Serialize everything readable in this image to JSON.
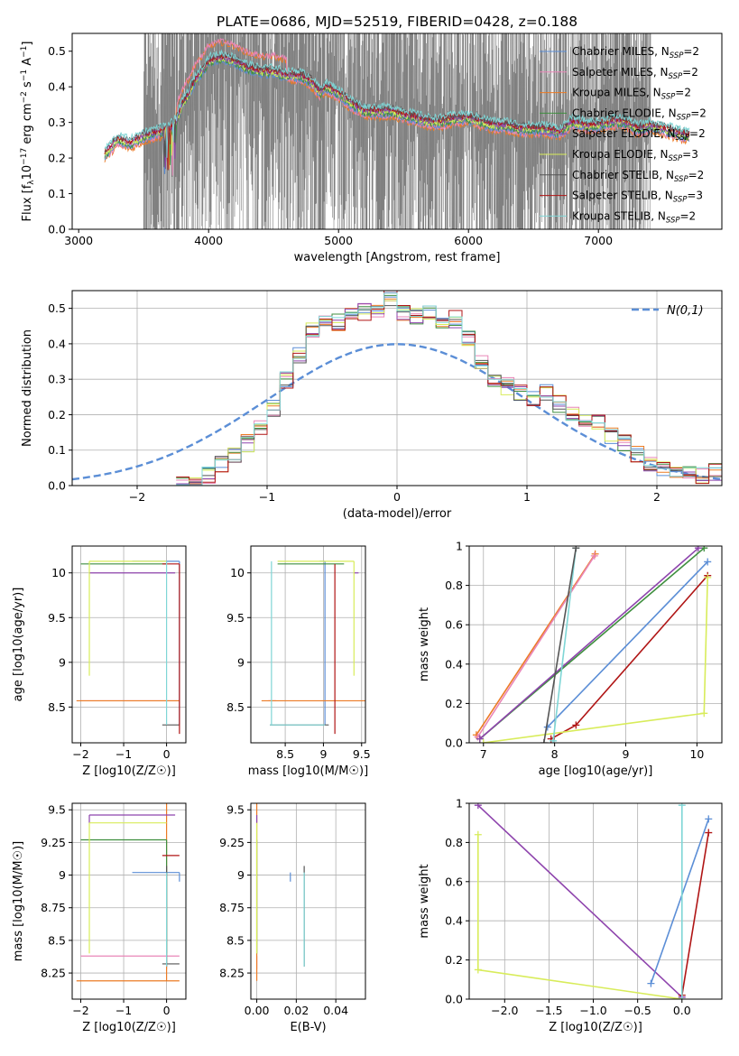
{
  "page_title": "PLATE=0686, MJD=52519, FIBERID=0428, z=0.188",
  "colors": {
    "chabrier_miles": "#5b8ed6",
    "salpeter_miles": "#e986b8",
    "kroupa_miles": "#ec7b25",
    "chabrier_elodie": "#3f8f3f",
    "salpeter_elodie": "#8e44ad",
    "kroupa_elodie": "#d8ec5a",
    "chabrier_stelib": "#555555",
    "salpeter_stelib": "#b01515",
    "kroupa_stelib": "#7fd6d6",
    "data": "#808080",
    "gauss": "#5b8ed6",
    "grid": "#b0b0b0"
  },
  "chart_data": [
    {
      "id": "spectrum",
      "type": "line",
      "title": "PLATE=0686, MJD=52519, FIBERID=0428, z=0.188",
      "xlabel": "wavelength [Angstrom, rest frame]",
      "ylabel": "Flux [f_λ 10^-17 erg cm^-2 s^-1 A^-1]",
      "xlim": [
        2950,
        7950
      ],
      "ylim": [
        0,
        0.55
      ],
      "xticks": [
        3000,
        4000,
        5000,
        6000,
        7000
      ],
      "yticks": [
        0.0,
        0.1,
        0.2,
        0.3,
        0.4,
        0.5
      ],
      "grid": false,
      "legend_position": "top-right",
      "legend": [
        {
          "name": "Chabrier MILES, N",
          "sub": "SSP",
          "tail": "=2",
          "color_key": "chabrier_miles"
        },
        {
          "name": "Salpeter MILES, N",
          "sub": "SSP",
          "tail": "=2",
          "color_key": "salpeter_miles"
        },
        {
          "name": "Kroupa MILES, N",
          "sub": "SSP",
          "tail": "=2",
          "color_key": "kroupa_miles"
        },
        {
          "name": "Chabrier ELODIE, N",
          "sub": "SSP",
          "tail": "=2",
          "color_key": "chabrier_elodie"
        },
        {
          "name": "Salpeter ELODIE, N",
          "sub": "SSP",
          "tail": "=2",
          "color_key": "salpeter_elodie"
        },
        {
          "name": "Kroupa ELODIE, N",
          "sub": "SSP",
          "tail": "=3",
          "color_key": "kroupa_elodie"
        },
        {
          "name": "Chabrier STELIB, N",
          "sub": "SSP",
          "tail": "=2",
          "color_key": "chabrier_stelib"
        },
        {
          "name": "Salpeter STELIB, N",
          "sub": "SSP",
          "tail": "=3",
          "color_key": "salpeter_stelib"
        },
        {
          "name": "Kroupa STELIB, N",
          "sub": "SSP",
          "tail": "=2",
          "color_key": "kroupa_stelib"
        }
      ],
      "model_continuum": {
        "x": [
          3200,
          3300,
          3400,
          3500,
          3600,
          3700,
          3750,
          3800,
          3850,
          3900,
          3950,
          4000,
          4100,
          4200,
          4300,
          4400,
          4500,
          4600,
          4700,
          4800,
          4860,
          4900,
          5000,
          5100,
          5200,
          5300,
          5400,
          5500,
          5600,
          5700,
          5800,
          5900,
          6000,
          6100,
          6200,
          6300,
          6400,
          6500,
          6600,
          6700,
          6800,
          6900,
          7000,
          7100,
          7200,
          7300,
          7400,
          7500,
          7600,
          7700
        ],
        "y": [
          0.21,
          0.25,
          0.24,
          0.26,
          0.27,
          0.28,
          0.3,
          0.35,
          0.38,
          0.42,
          0.44,
          0.47,
          0.48,
          0.47,
          0.45,
          0.44,
          0.44,
          0.43,
          0.43,
          0.41,
          0.38,
          0.4,
          0.38,
          0.35,
          0.33,
          0.33,
          0.33,
          0.32,
          0.31,
          0.3,
          0.3,
          0.31,
          0.31,
          0.3,
          0.29,
          0.29,
          0.28,
          0.28,
          0.28,
          0.27,
          0.3,
          0.29,
          0.29,
          0.3,
          0.3,
          0.28,
          0.29,
          0.28,
          0.27,
          0.26
        ]
      },
      "noisy_region": [
        3500,
        7400
      ]
    },
    {
      "id": "residuals",
      "type": "bar",
      "xlabel": "(data-model)/error",
      "ylabel": "Normed distribution",
      "xlim": [
        -2.5,
        2.5
      ],
      "ylim": [
        0,
        0.55
      ],
      "xticks": [
        -2,
        -1,
        0,
        1,
        2
      ],
      "yticks": [
        0.0,
        0.1,
        0.2,
        0.3,
        0.4,
        0.5
      ],
      "grid": true,
      "legend_position": "top-right",
      "legend_label": "N(0,1)",
      "bin_width": 0.1,
      "x": [
        -1.65,
        -1.55,
        -1.45,
        -1.35,
        -1.25,
        -1.15,
        -1.05,
        -0.95,
        -0.85,
        -0.75,
        -0.65,
        -0.55,
        -0.45,
        -0.35,
        -0.25,
        -0.15,
        -0.05,
        0.05,
        0.15,
        0.25,
        0.35,
        0.45,
        0.55,
        0.65,
        0.75,
        0.85,
        0.95,
        1.05,
        1.15,
        1.25,
        1.35,
        1.45,
        1.55,
        1.65,
        1.75,
        1.85,
        1.95,
        2.05,
        2.15,
        2.25,
        2.35,
        2.45
      ],
      "values": [
        0.0,
        0.01,
        0.03,
        0.06,
        0.09,
        0.12,
        0.16,
        0.22,
        0.3,
        0.37,
        0.44,
        0.47,
        0.46,
        0.48,
        0.49,
        0.5,
        0.53,
        0.49,
        0.48,
        0.49,
        0.45,
        0.47,
        0.42,
        0.35,
        0.3,
        0.28,
        0.26,
        0.25,
        0.26,
        0.23,
        0.2,
        0.19,
        0.18,
        0.14,
        0.12,
        0.09,
        0.06,
        0.05,
        0.04,
        0.03,
        0.03,
        0.04
      ]
    },
    {
      "id": "age-vs-Z",
      "type": "scatter",
      "xlabel": "Z [log10(Z/Z☉)]",
      "ylabel": "age [log10(age/yr)]",
      "xlim": [
        -2.2,
        0.45
      ],
      "ylim": [
        8.1,
        10.3
      ],
      "xticks": [
        -2,
        -1,
        0
      ],
      "yticks": [
        8.5,
        9.0,
        9.5,
        10.0
      ],
      "grid": true
    },
    {
      "id": "age-vs-mass",
      "type": "scatter",
      "xlabel": "mass [log10(M/M☉)]",
      "ylabel": "",
      "xlim": [
        8.05,
        9.55
      ],
      "ylim": [
        8.1,
        10.3
      ],
      "xticks": [
        8.5,
        9.0,
        9.5
      ],
      "yticks": [
        8.5,
        9.0,
        9.5,
        10.0
      ],
      "grid": true
    },
    {
      "id": "weight-vs-age",
      "type": "line",
      "xlabel": "age [log10(age/yr)]",
      "ylabel": "mass weight",
      "xlim": [
        6.8,
        10.35
      ],
      "ylim": [
        0,
        1
      ],
      "xticks": [
        7,
        8,
        9,
        10
      ],
      "yticks": [
        0.0,
        0.2,
        0.4,
        0.6,
        0.8,
        1.0
      ],
      "grid": true,
      "series": [
        {
          "color_key": "kroupa_miles",
          "x": [
            6.9,
            8.57
          ],
          "y": [
            0.04,
            0.96
          ]
        },
        {
          "color_key": "salpeter_miles",
          "x": [
            6.92,
            8.56
          ],
          "y": [
            0.03,
            0.95
          ]
        },
        {
          "color_key": "chabrier_elodie",
          "x": [
            6.95,
            10.1
          ],
          "y": [
            0.02,
            0.99
          ]
        },
        {
          "color_key": "salpeter_elodie",
          "x": [
            6.95,
            10.02
          ],
          "y": [
            0.02,
            0.99
          ]
        },
        {
          "color_key": "chabrier_miles",
          "x": [
            7.9,
            10.15
          ],
          "y": [
            0.08,
            0.92
          ]
        },
        {
          "color_key": "salpeter_stelib",
          "x": [
            7.95,
            8.3,
            10.15
          ],
          "y": [
            0.02,
            0.09,
            0.85
          ]
        },
        {
          "color_key": "kroupa_elodie",
          "x": [
            7.0,
            10.1,
            10.15
          ],
          "y": [
            0.0,
            0.15,
            0.84
          ]
        },
        {
          "color_key": "kroupa_stelib",
          "x": [
            7.98,
            8.3
          ],
          "y": [
            0.01,
            0.99
          ]
        },
        {
          "color_key": "chabrier_stelib",
          "x": [
            7.85,
            8.3
          ],
          "y": [
            0.0,
            0.99
          ]
        }
      ]
    },
    {
      "id": "mass-vs-Z",
      "type": "scatter",
      "xlabel": "Z [log10(Z/Z☉)]",
      "ylabel": "mass [log10(M/M☉)]",
      "xlim": [
        -2.2,
        0.45
      ],
      "ylim": [
        8.05,
        9.55
      ],
      "xticks": [
        -2,
        -1,
        0
      ],
      "yticks": [
        8.25,
        8.5,
        8.75,
        9.0,
        9.25,
        9.5
      ],
      "grid": true
    },
    {
      "id": "mass-vs-EBV",
      "type": "scatter",
      "xlabel": "E(B-V)",
      "ylabel": "",
      "xlim": [
        -0.003,
        0.055
      ],
      "ylim": [
        8.05,
        9.55
      ],
      "xticks": [
        0.0,
        0.02,
        0.04
      ],
      "yticks": [
        8.25,
        8.5,
        8.75,
        9.0,
        9.25,
        9.5
      ],
      "grid": true
    },
    {
      "id": "weight-vs-Z",
      "type": "line",
      "xlabel": "Z [log10(Z/Z☉)]",
      "ylabel": "mass weight",
      "xlim": [
        -2.4,
        0.45
      ],
      "ylim": [
        0,
        1
      ],
      "xticks": [
        -2.0,
        -1.5,
        -1.0,
        -0.5,
        0.0
      ],
      "yticks": [
        0.0,
        0.2,
        0.4,
        0.6,
        0.8,
        1.0
      ],
      "grid": true,
      "series": [
        {
          "color_key": "salpeter_elodie",
          "x": [
            -2.3,
            0.0
          ],
          "y": [
            0.99,
            0.01
          ]
        },
        {
          "color_key": "kroupa_elodie",
          "x": [
            -2.3,
            -2.3,
            0.0
          ],
          "y": [
            0.84,
            0.15,
            0.0
          ]
        },
        {
          "color_key": "chabrier_miles",
          "x": [
            -0.35,
            0.3
          ],
          "y": [
            0.08,
            0.92
          ]
        },
        {
          "color_key": "salpeter_stelib",
          "x": [
            0.0,
            0.3
          ],
          "y": [
            0.02,
            0.85
          ]
        },
        {
          "color_key": "kroupa_stelib",
          "x": [
            0.0,
            0.0
          ],
          "y": [
            0.0,
            0.99
          ]
        }
      ]
    }
  ]
}
